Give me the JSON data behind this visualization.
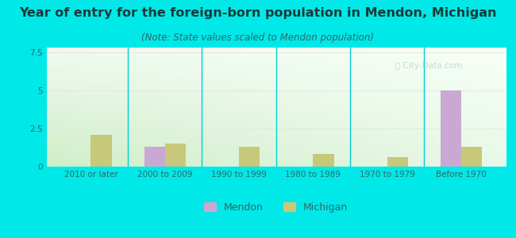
{
  "title": "Year of entry for the foreign-born population in Mendon, Michigan",
  "subtitle": "(Note: State values scaled to Mendon population)",
  "categories": [
    "2010 or later",
    "2000 to 2009",
    "1990 to 1999",
    "1980 to 1989",
    "1970 to 1979",
    "Before 1970"
  ],
  "mendon_values": [
    0,
    1.3,
    0,
    0,
    0,
    5.0
  ],
  "michigan_values": [
    2.1,
    1.5,
    1.3,
    0.85,
    0.6,
    1.3
  ],
  "mendon_color": "#c9a8d4",
  "michigan_color": "#c8c87a",
  "background_outer": "#00e8e8",
  "bg_top_color": "#f0faf0",
  "bg_bottom_color": "#d8f0d0",
  "ylim": [
    0,
    7.8
  ],
  "yticks": [
    0,
    2.5,
    5,
    7.5
  ],
  "bar_width": 0.28,
  "title_fontsize": 11.5,
  "subtitle_fontsize": 8.5,
  "tick_fontsize": 7.5,
  "legend_fontsize": 9,
  "title_color": "#1a3a3a",
  "subtitle_color": "#336666",
  "tick_color": "#336666",
  "grid_color": "#e0ece0",
  "watermark_color": "#aacccc",
  "watermark_alpha": 0.7
}
